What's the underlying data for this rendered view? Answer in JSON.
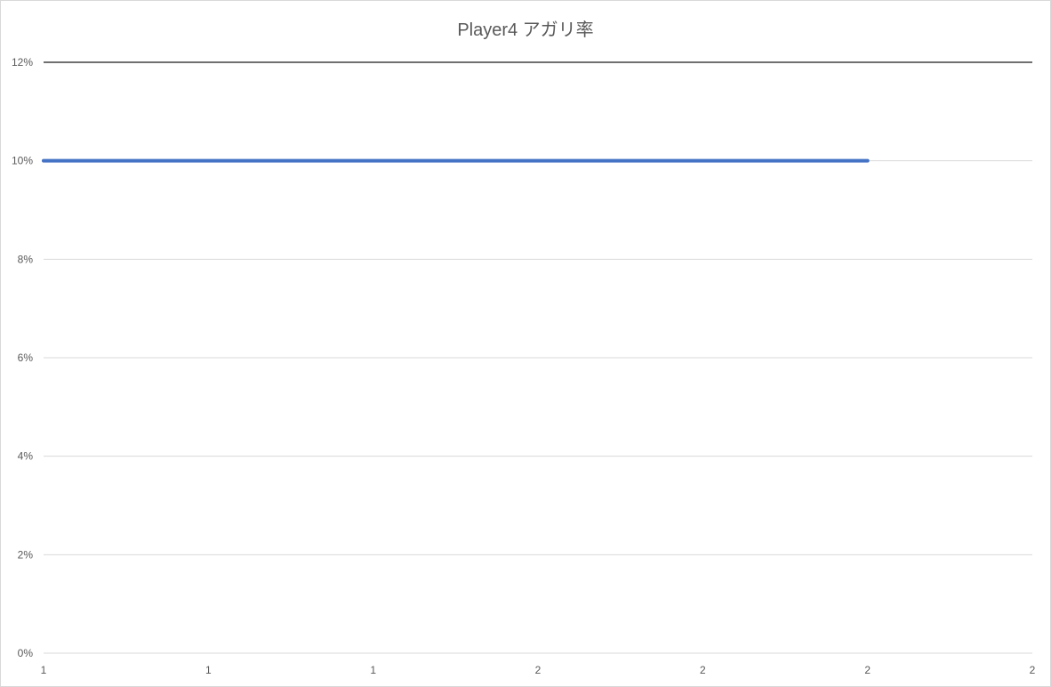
{
  "chart_data": {
    "type": "line",
    "title": "Player4 アガリ率",
    "xlabel": "",
    "ylabel": "",
    "x_tick_labels": [
      "1",
      "1",
      "1",
      "2",
      "2",
      "2",
      "2"
    ],
    "y_tick_labels": [
      "0%",
      "2%",
      "4%",
      "6%",
      "8%",
      "10%",
      "12%"
    ],
    "y_ticks": [
      0,
      2,
      4,
      6,
      8,
      10,
      12
    ],
    "ylim": [
      0,
      12
    ],
    "x_positions": 7,
    "grid": true,
    "legend": "none",
    "series": [
      {
        "points": [
          [
            0,
            10
          ],
          [
            5,
            10
          ]
        ],
        "color": "#4472c4"
      }
    ],
    "grid_color": "#d9d9d9",
    "top_line_color": "#404040"
  }
}
